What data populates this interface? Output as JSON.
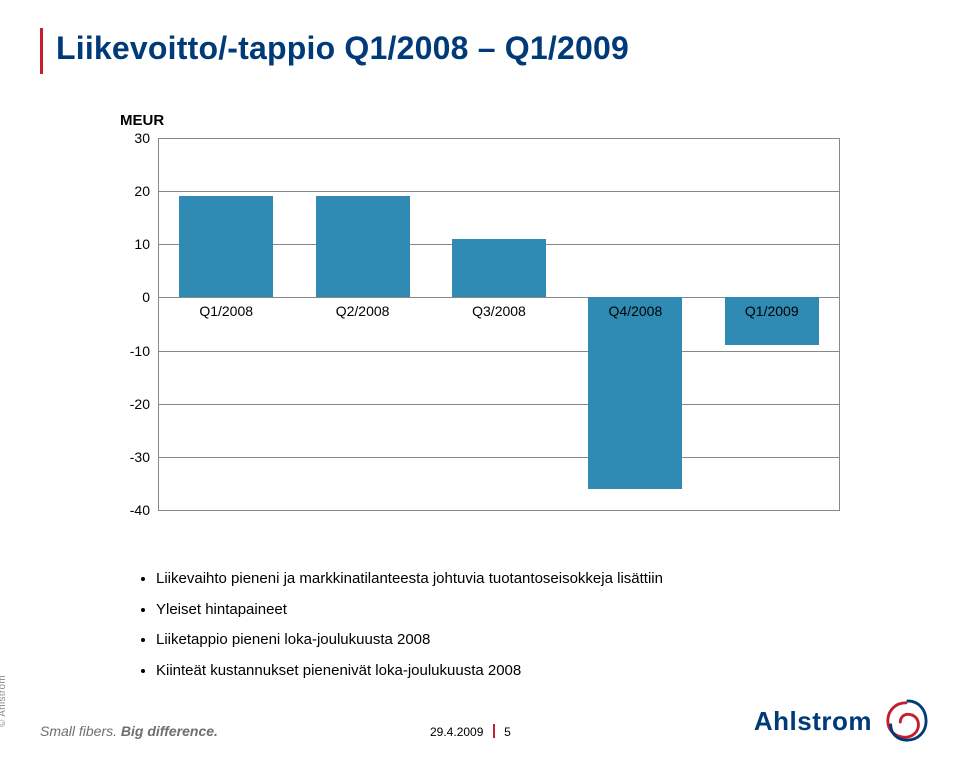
{
  "title": "Liikevoitto/-tappio Q1/2008 – Q1/2009",
  "meur_label": "MEUR",
  "chart": {
    "type": "bar",
    "categories": [
      "Q1/2008",
      "Q2/2008",
      "Q3/2008",
      "Q4/2008",
      "Q1/2009"
    ],
    "values": [
      19,
      19,
      11,
      -36,
      -9
    ],
    "bar_color": "#2f8bb3",
    "ylim": [
      -40,
      30
    ],
    "ytick_step": 10,
    "yticks": [
      30,
      20,
      10,
      0,
      -10,
      -20,
      -30,
      -40
    ],
    "grid_color": "#888888",
    "background_color": "#ffffff",
    "bar_width": 0.69,
    "label_fontsize": 14
  },
  "bullets": [
    "Liikevaihto pieneni ja markkinatilanteesta johtuvia tuotantoseisokkeja lisättiin",
    "Yleiset hintapaineet",
    "Liiketappio pieneni loka-joulukuusta 2008",
    "Kiinteät kustannukset pienenivät loka-joulukuusta 2008"
  ],
  "footer": {
    "date": "29.4.2009",
    "page": "5"
  },
  "tagline": {
    "a": "Small fibers.",
    "b": "Big difference."
  },
  "copyright": "© Ahlstrom",
  "brand": "Ahlstrom",
  "colors": {
    "accent": "#c51e2f",
    "brand": "#003a78"
  }
}
